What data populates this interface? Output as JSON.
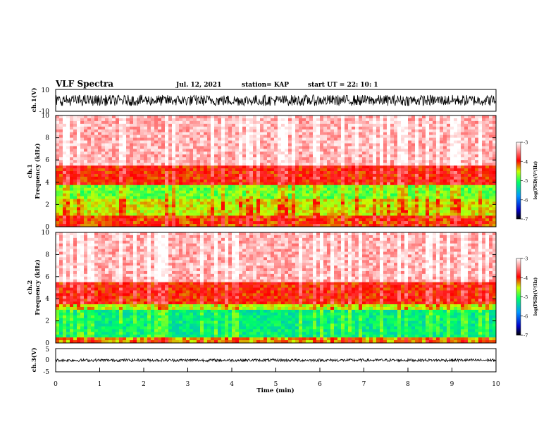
{
  "header": {
    "title": "VLF Spectra",
    "date": "Jul. 12, 2021",
    "station": "station= KAP",
    "start": "start UT =  22: 10: 1"
  },
  "chart_data": [
    {
      "id": "ch1-waveform",
      "type": "line",
      "ylabel": "ch.1(V)",
      "ylim": [
        -10,
        10
      ],
      "yticks": [
        "10",
        "-10"
      ],
      "xlim": [
        0,
        10
      ],
      "description_values": {
        "mean": 0,
        "amplitude": 5
      }
    },
    {
      "id": "ch1-spectrogram",
      "type": "heatmap",
      "ylabel_line1": "ch.1",
      "ylabel_line2": "Frequency (kHz)",
      "ylim": [
        0,
        10
      ],
      "yticks": [
        "0",
        "2",
        "4",
        "6",
        "8",
        "10"
      ],
      "xlim": [
        0,
        10
      ],
      "bands": [
        {
          "from": 0,
          "to": 1,
          "level": -4.1
        },
        {
          "from": 1,
          "to": 2.5,
          "level": -4.5
        },
        {
          "from": 2.5,
          "to": 3.8,
          "level": -4.8
        },
        {
          "from": 3.8,
          "to": 5.5,
          "level": -4.0
        },
        {
          "from": 5.5,
          "to": 10,
          "level": -3.3
        }
      ],
      "colorbar": {
        "label": "log(PSD)(V²/Hz)",
        "min": -7,
        "max": -3,
        "ticks": [
          "-3",
          "-4",
          "-5",
          "-6",
          "-7"
        ]
      }
    },
    {
      "id": "ch2-spectrogram",
      "type": "heatmap",
      "ylabel_line1": "ch.2",
      "ylabel_line2": "Frequency (kHz)",
      "ylim": [
        0,
        10
      ],
      "yticks": [
        "0",
        "2",
        "4",
        "6",
        "8",
        "10"
      ],
      "xlim": [
        0,
        10
      ],
      "bands": [
        {
          "from": 0,
          "to": 0.5,
          "level": -4.3
        },
        {
          "from": 0.5,
          "to": 3.0,
          "level": -5.2
        },
        {
          "from": 3.0,
          "to": 3.6,
          "level": -4.6
        },
        {
          "from": 3.6,
          "to": 5.5,
          "level": -4.0
        },
        {
          "from": 5.5,
          "to": 10,
          "level": -3.3
        }
      ],
      "colorbar": {
        "label": "log(PSD)(V²/Hz)",
        "min": -7,
        "max": -3,
        "ticks": [
          "-3",
          "-4",
          "-5",
          "-6",
          "-7"
        ]
      }
    },
    {
      "id": "ch3-waveform",
      "type": "line",
      "ylabel": "ch.3(V)",
      "ylim": [
        -5,
        5
      ],
      "yticks": [
        "5",
        "0",
        "-5"
      ],
      "xlim": [
        0,
        10
      ],
      "xlabel": "Time (min)",
      "xticks": [
        "0",
        "1",
        "2",
        "3",
        "4",
        "5",
        "6",
        "7",
        "8",
        "9",
        "10"
      ],
      "description_values": {
        "mean": 0,
        "amplitude": 0.6
      }
    }
  ],
  "colors": {
    "axis": "#000000",
    "trace": "#000000",
    "colormap": [
      "#000000",
      "#0000c8",
      "#0096ff",
      "#00ff64",
      "#c8ff00",
      "#ff0000",
      "#ffffff"
    ]
  }
}
